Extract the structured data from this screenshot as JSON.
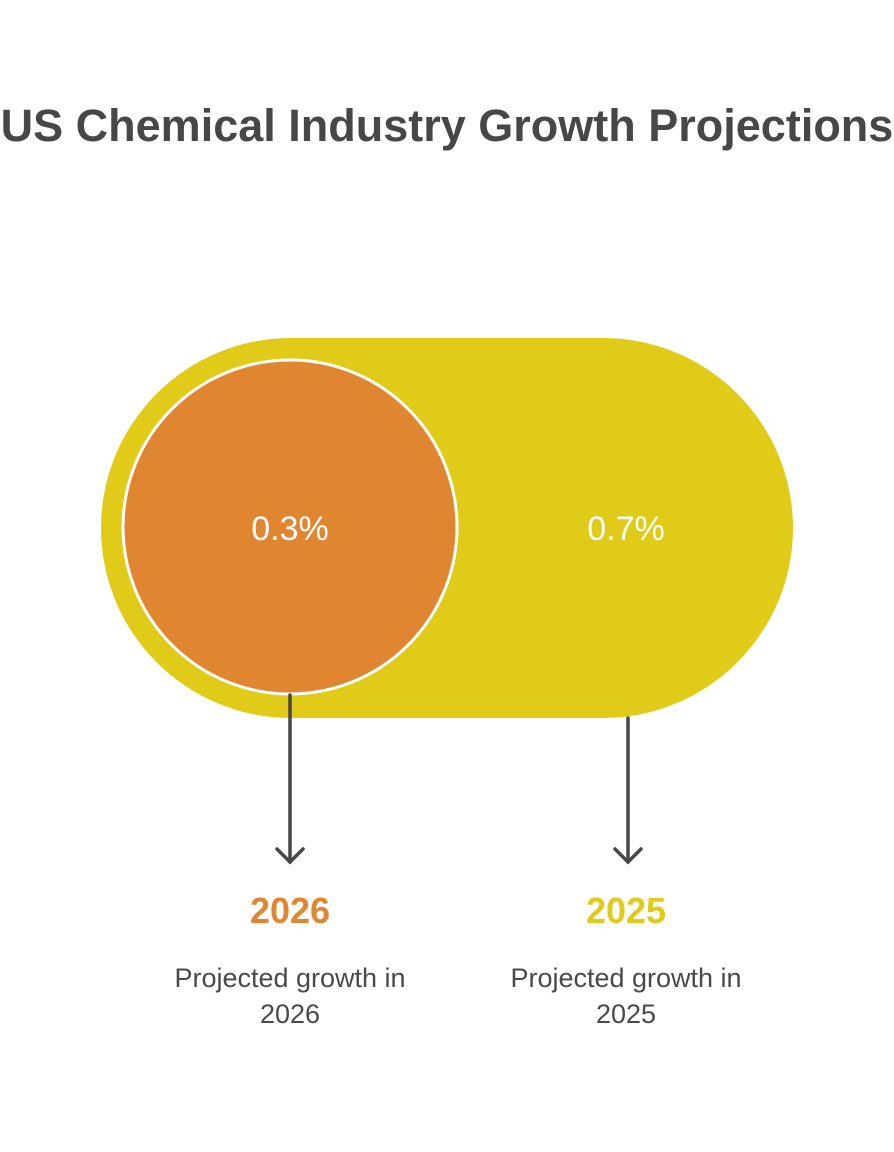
{
  "title": "US Chemical Industry Growth Projections",
  "colors": {
    "yellow": "#E0CB19",
    "orange": "#E08630",
    "text": "#474747",
    "arrow": "#474747"
  },
  "items": [
    {
      "value": "0.3%",
      "year": "2026",
      "description": "Projected growth in 2026",
      "color": "#E08630"
    },
    {
      "value": "0.7%",
      "year": "2025",
      "description": "Projected growth in 2025",
      "color": "#E0CB19"
    }
  ]
}
